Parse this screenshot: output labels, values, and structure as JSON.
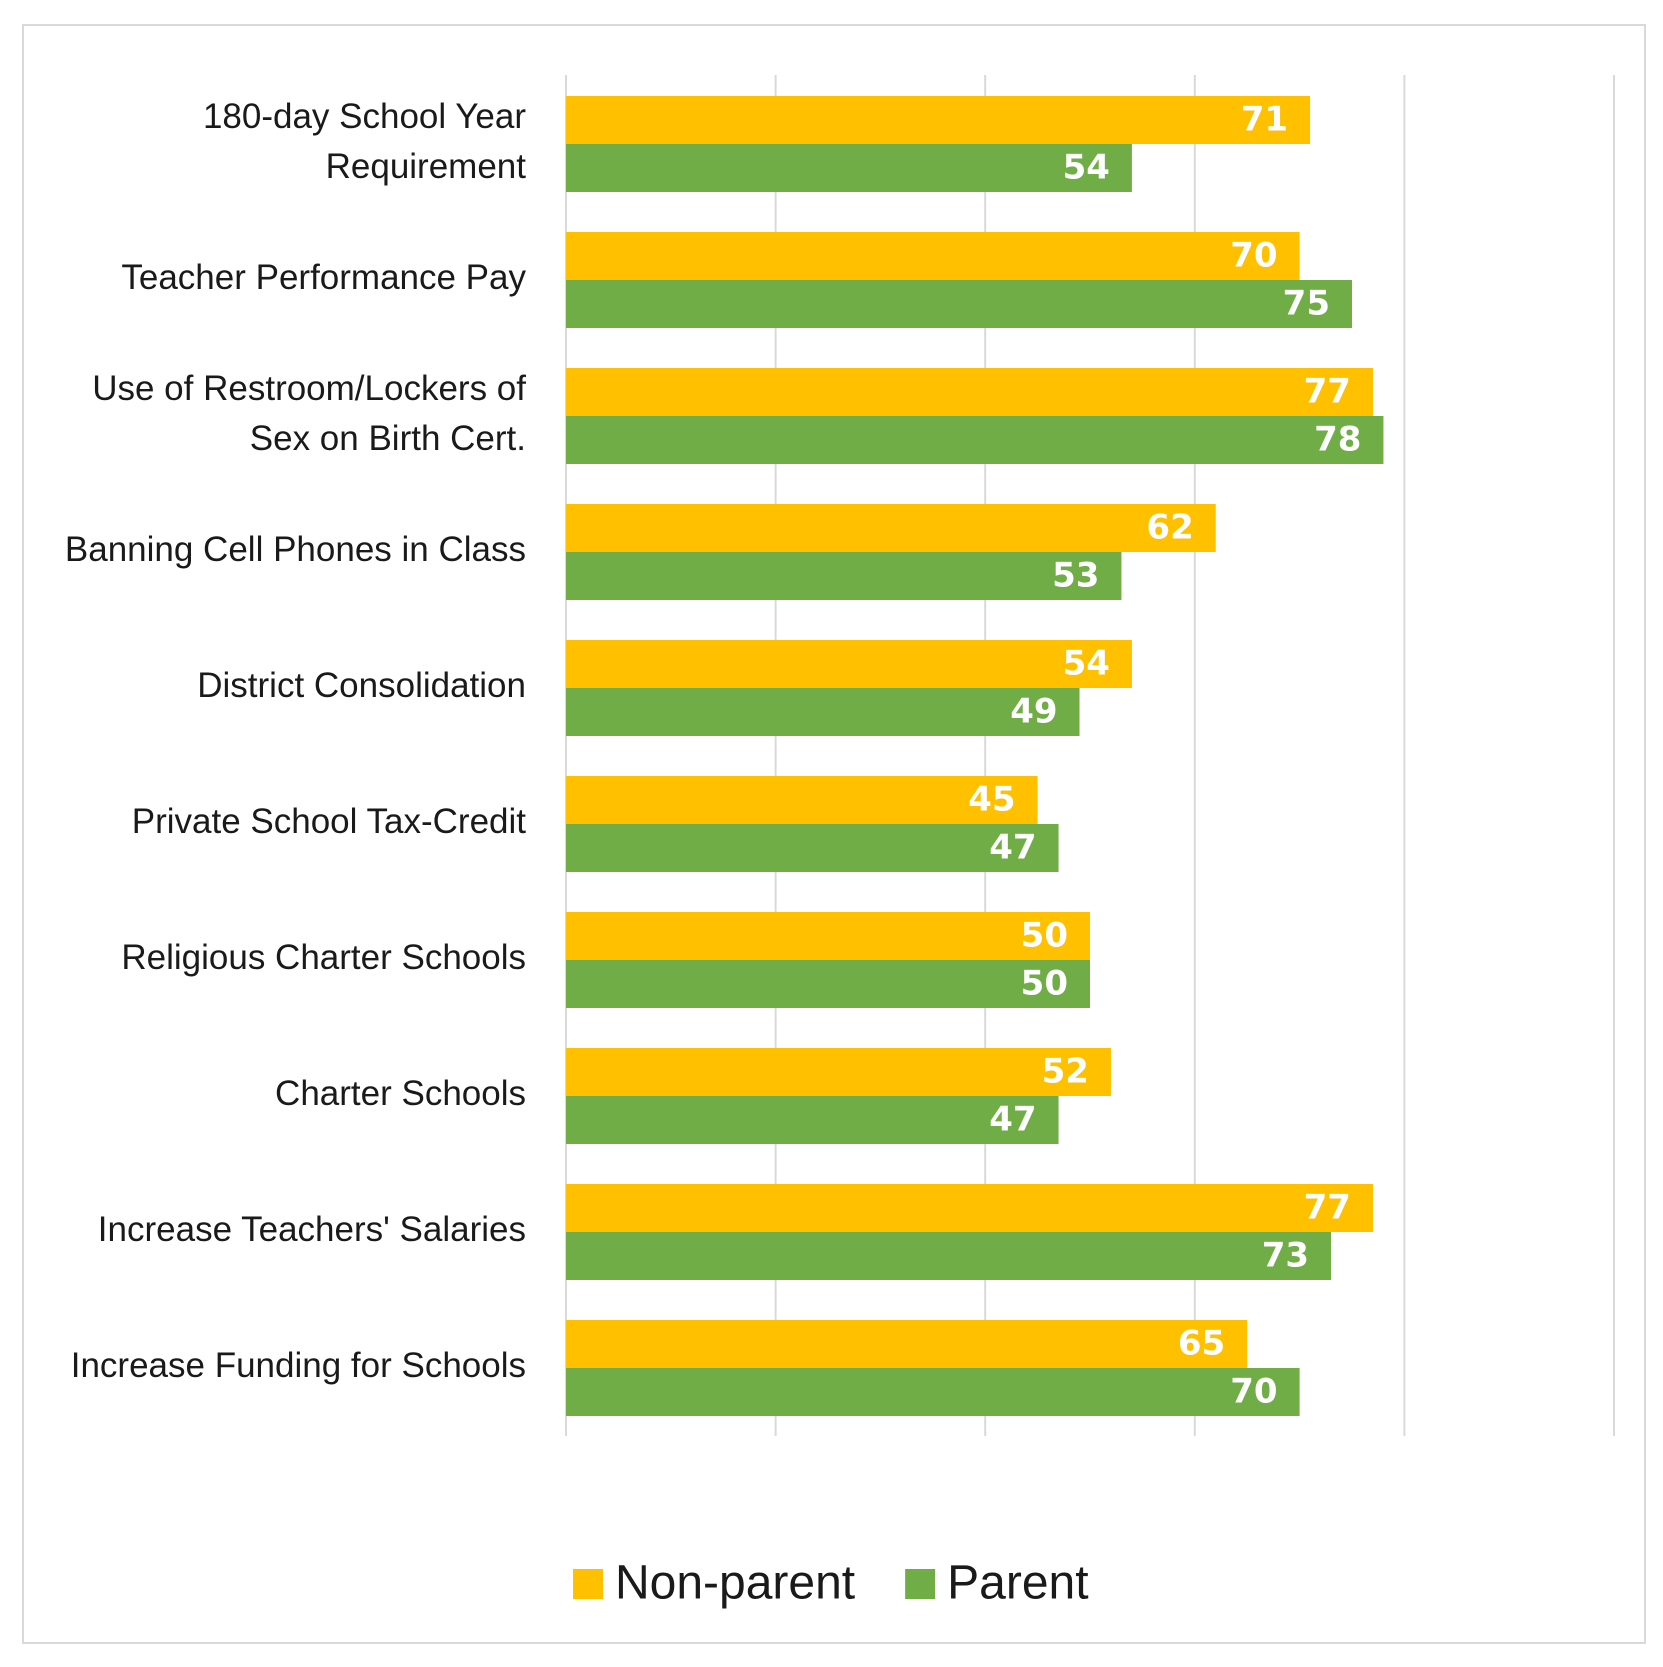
{
  "chart_data": {
    "type": "bar",
    "orientation": "horizontal",
    "categories": [
      [
        "180-day School Year",
        "Requirement"
      ],
      [
        "Teacher Performance Pay"
      ],
      [
        "Use of Restroom/Lockers of",
        "Sex on Birth Cert."
      ],
      [
        "Banning Cell Phones in Class"
      ],
      [
        "District Consolidation"
      ],
      [
        "Private School Tax-Credit"
      ],
      [
        "Religious Charter Schools"
      ],
      [
        "Charter Schools"
      ],
      [
        "Increase Teachers' Salaries"
      ],
      [
        "Increase Funding for Schools"
      ]
    ],
    "series": [
      {
        "name": "Non-parent",
        "color": "#FFC000",
        "values": [
          71,
          70,
          77,
          62,
          54,
          45,
          50,
          52,
          77,
          65
        ]
      },
      {
        "name": "Parent",
        "color": "#70AD47",
        "values": [
          54,
          75,
          78,
          53,
          49,
          47,
          50,
          47,
          73,
          70
        ]
      }
    ],
    "xlim": [
      0,
      100
    ],
    "grid": true,
    "gridline_color": "#d9d9d9",
    "label_color": "#FFFFFF",
    "legend_position": "bottom"
  }
}
